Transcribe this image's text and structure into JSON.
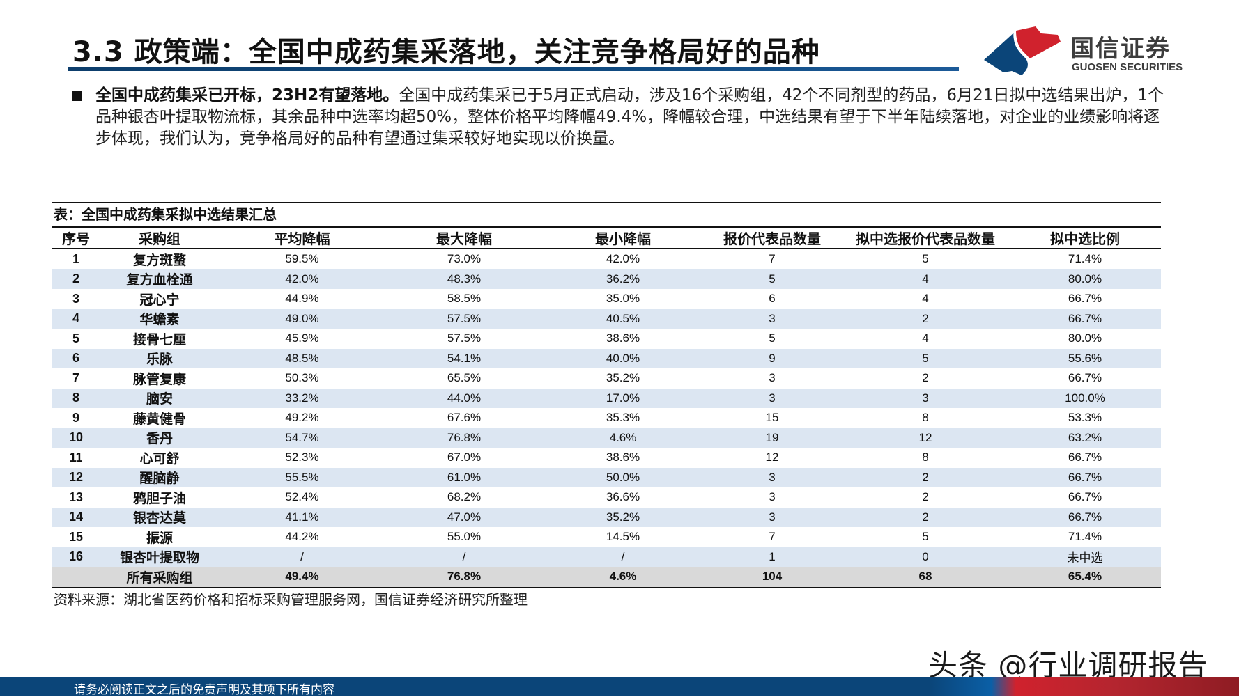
{
  "header": {
    "title": "3.3 政策端：全国中成药集采落地，关注竞争格局好的品种",
    "logo_cn": "国信证券",
    "logo_en": "GUOSEN SECURITIES",
    "brand_colors": {
      "blue": "#0b4579",
      "red": "#d0222d"
    }
  },
  "bullet": {
    "lead": "全国中成药集采已开标，23H2有望落地。",
    "body": "全国中成药集采已于5月正式启动，涉及16个采购组，42个不同剂型的药品，6月21日拟中选结果出炉，1个品种银杏叶提取物流标，其余品种中选率均超50%，整体价格平均降幅49.4%，降幅较合理，中选结果有望于下半年陆续落地，对企业的业绩影响将逐步体现，我们认为，竞争格局好的品种有望通过集采较好地实现以价换量。"
  },
  "table": {
    "caption": "表：全国中成药集采拟中选结果汇总",
    "headers": [
      "序号",
      "采购组",
      "平均降幅",
      "最大降幅",
      "最小降幅",
      "报价代表品数量",
      "拟中选报价代表品数量",
      "拟中选比例"
    ],
    "rows": [
      [
        "1",
        "复方斑蝥",
        "59.5%",
        "73.0%",
        "42.0%",
        "7",
        "5",
        "71.4%"
      ],
      [
        "2",
        "复方血栓通",
        "42.0%",
        "48.3%",
        "36.2%",
        "5",
        "4",
        "80.0%"
      ],
      [
        "3",
        "冠心宁",
        "44.9%",
        "58.5%",
        "35.0%",
        "6",
        "4",
        "66.7%"
      ],
      [
        "4",
        "华蟾素",
        "49.0%",
        "57.5%",
        "40.5%",
        "3",
        "2",
        "66.7%"
      ],
      [
        "5",
        "接骨七厘",
        "45.9%",
        "57.5%",
        "38.6%",
        "5",
        "4",
        "80.0%"
      ],
      [
        "6",
        "乐脉",
        "48.5%",
        "54.1%",
        "40.0%",
        "9",
        "5",
        "55.6%"
      ],
      [
        "7",
        "脉管复康",
        "50.3%",
        "65.5%",
        "35.2%",
        "3",
        "2",
        "66.7%"
      ],
      [
        "8",
        "脑安",
        "33.2%",
        "44.0%",
        "17.0%",
        "3",
        "3",
        "100.0%"
      ],
      [
        "9",
        "藤黄健骨",
        "49.2%",
        "67.6%",
        "35.3%",
        "15",
        "8",
        "53.3%"
      ],
      [
        "10",
        "香丹",
        "54.7%",
        "76.8%",
        "4.6%",
        "19",
        "12",
        "63.2%"
      ],
      [
        "11",
        "心可舒",
        "52.3%",
        "67.0%",
        "38.6%",
        "12",
        "8",
        "66.7%"
      ],
      [
        "12",
        "醒脑静",
        "55.5%",
        "61.0%",
        "50.0%",
        "3",
        "2",
        "66.7%"
      ],
      [
        "13",
        "鸦胆子油",
        "52.4%",
        "68.2%",
        "36.6%",
        "3",
        "2",
        "66.7%"
      ],
      [
        "14",
        "银杏达莫",
        "41.1%",
        "47.0%",
        "35.2%",
        "3",
        "2",
        "66.7%"
      ],
      [
        "15",
        "振源",
        "44.2%",
        "55.0%",
        "14.5%",
        "7",
        "5",
        "71.4%"
      ],
      [
        "16",
        "银杏叶提取物",
        "/",
        "/",
        "/",
        "1",
        "0",
        "未中选"
      ]
    ],
    "total": [
      "",
      "所有采购组",
      "49.4%",
      "76.8%",
      "4.6%",
      "104",
      "68",
      "65.4%"
    ],
    "row_alt_color": "#dce6f2",
    "total_row_color": "#d9d9d9"
  },
  "source": "资料来源：湖北省医药价格和招标采购管理服务网，国信证券经济研究所整理",
  "watermark": "头条 @行业调研报告",
  "footer": {
    "disclaimer": "请务必阅读正文之后的免责声明及其项下所有内容"
  }
}
